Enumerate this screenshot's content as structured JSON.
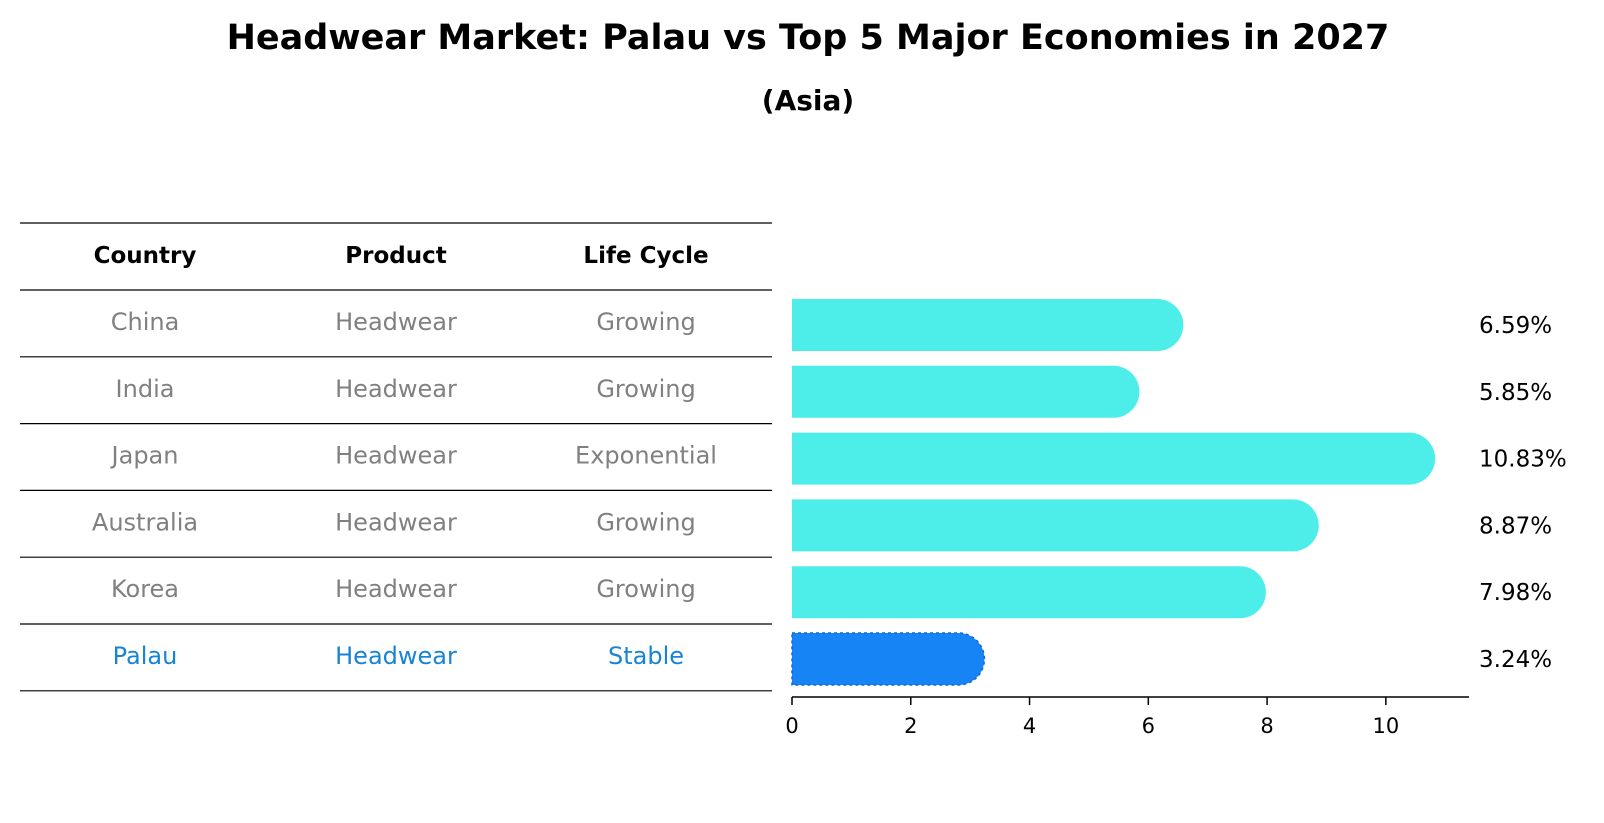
{
  "chart_data": {
    "type": "bar",
    "orientation": "horizontal",
    "title": "Headwear Market: Palau vs Top 5 Major Economies in 2027",
    "subtitle": "(Asia)",
    "table": {
      "headers": [
        "Country",
        "Product",
        "Life Cycle"
      ],
      "rows": [
        [
          "China",
          "Headwear",
          "Growing"
        ],
        [
          "India",
          "Headwear",
          "Growing"
        ],
        [
          "Japan",
          "Headwear",
          "Exponential"
        ],
        [
          "Australia",
          "Headwear",
          "Growing"
        ],
        [
          "Korea",
          "Headwear",
          "Growing"
        ],
        [
          "Palau",
          "Headwear",
          "Stable"
        ]
      ]
    },
    "categories": [
      "China",
      "India",
      "Japan",
      "Australia",
      "Korea",
      "Palau"
    ],
    "values": [
      6.59,
      5.85,
      10.83,
      8.87,
      7.98,
      3.24
    ],
    "labels": [
      "6.59%",
      "5.85%",
      "10.83%",
      "8.87%",
      "7.98%",
      "3.24%"
    ],
    "highlight": "Palau",
    "xlim": [
      0,
      11.4
    ],
    "xticks": [
      0,
      2,
      4,
      6,
      8,
      10
    ],
    "xlabel": "",
    "ylabel": ""
  },
  "colors": {
    "bar": "#4DEEEA",
    "highlight_bar": "#1784F5",
    "text_normal": "#808080",
    "text_highlight": "#1784D5"
  }
}
